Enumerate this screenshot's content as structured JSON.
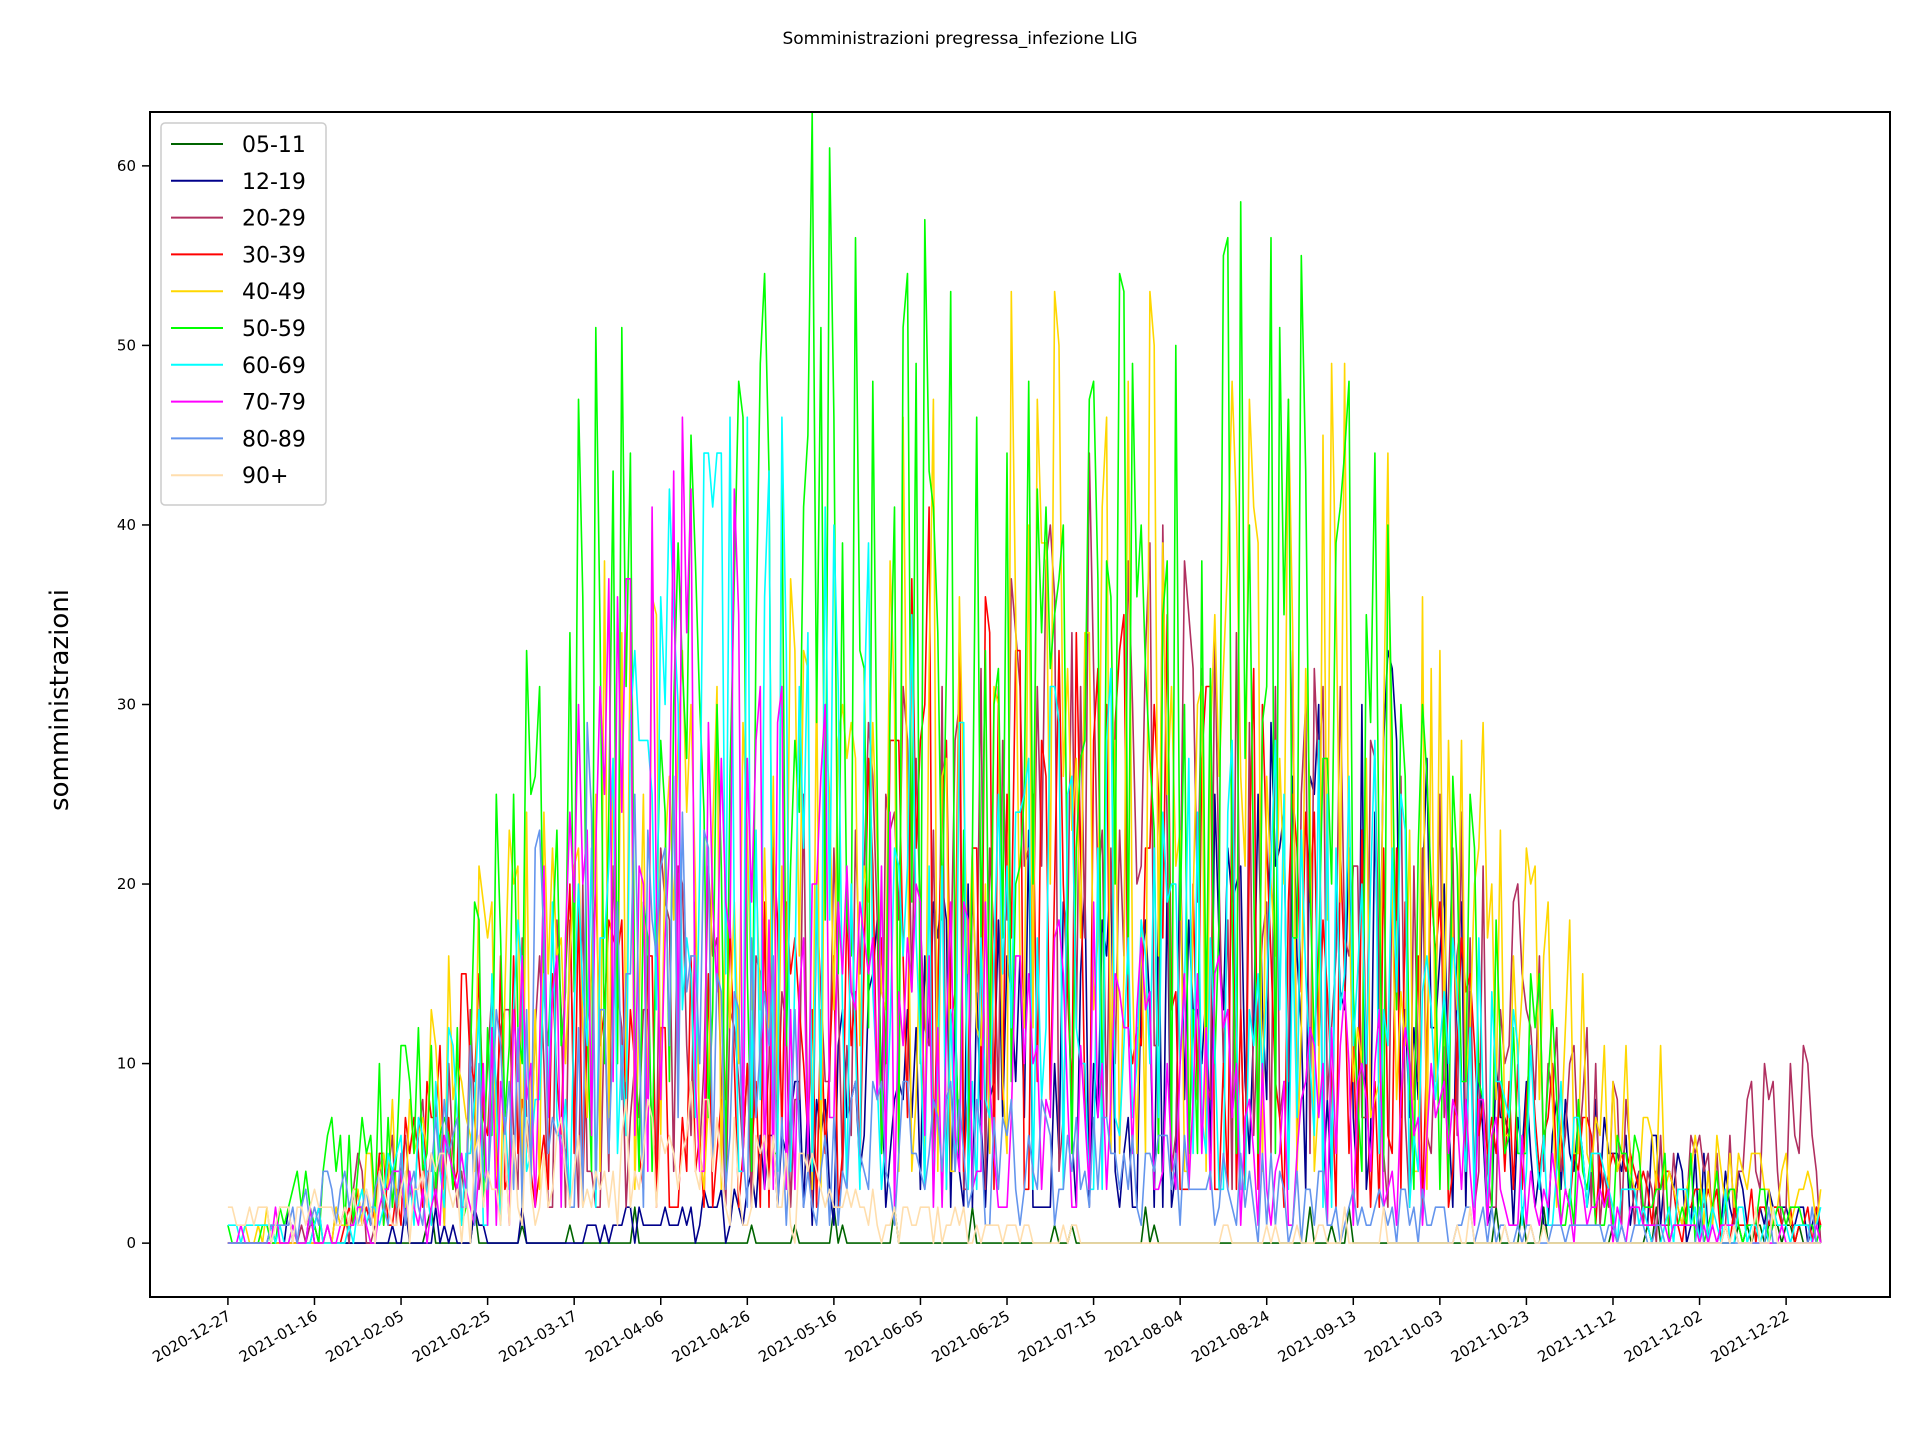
{
  "chart_data": {
    "type": "line",
    "title": "Somministrazioni pregressa_infezione LIG",
    "xlabel": "",
    "ylabel": "somministrazioni",
    "ylim": [
      -3,
      63
    ],
    "yticks": [
      0,
      10,
      20,
      30,
      40,
      50,
      60
    ],
    "x_start": "2020-12-27",
    "x_end": "2021-12-30",
    "x_range": [
      "2020-12-09",
      "2022-01-15"
    ],
    "x_ticks": [
      "2020-12-27",
      "2021-01-16",
      "2021-02-05",
      "2021-02-25",
      "2021-03-17",
      "2021-04-06",
      "2021-04-26",
      "2021-05-16",
      "2021-06-05",
      "2021-06-25",
      "2021-07-15",
      "2021-08-04",
      "2021-08-24",
      "2021-09-13",
      "2021-10-03",
      "2021-10-23",
      "2021-11-12",
      "2021-12-02",
      "2021-12-22"
    ],
    "legend_position": "upper-left",
    "grid": false,
    "series": [
      {
        "name": "05-11",
        "color": "#006400",
        "key": [
          [
            "2021-12-05",
            0
          ],
          [
            "2021-12-20",
            1
          ],
          [
            "2021-12-30",
            0
          ]
        ]
      },
      {
        "name": "12-19",
        "color": "#00008b",
        "key": [
          [
            "2021-01-01",
            0
          ],
          [
            "2021-03-05",
            0
          ],
          [
            "2021-04-25",
            2
          ],
          [
            "2021-05-20",
            10
          ],
          [
            "2021-06-20",
            14
          ],
          [
            "2021-07-25",
            13
          ],
          [
            "2021-08-20",
            17
          ],
          [
            "2021-09-25",
            20
          ],
          [
            "2021-10-15",
            6
          ],
          [
            "2021-11-20",
            4
          ],
          [
            "2021-12-30",
            1
          ]
        ]
      },
      {
        "name": "20-29",
        "color": "#b03060",
        "key": [
          [
            "2021-01-10",
            0
          ],
          [
            "2021-02-15",
            6
          ],
          [
            "2021-03-20",
            14
          ],
          [
            "2021-04-20",
            12
          ],
          [
            "2021-05-20",
            18
          ],
          [
            "2021-06-20",
            22
          ],
          [
            "2021-07-20",
            28
          ],
          [
            "2021-08-20",
            21
          ],
          [
            "2021-09-20",
            16
          ],
          [
            "2021-10-15",
            14
          ],
          [
            "2021-11-20",
            3
          ],
          [
            "2021-12-27",
            7
          ],
          [
            "2021-12-30",
            0
          ]
        ]
      },
      {
        "name": "30-39",
        "color": "#ff0000",
        "key": [
          [
            "2021-01-20",
            0
          ],
          [
            "2021-02-20",
            9
          ],
          [
            "2021-03-20",
            13
          ],
          [
            "2021-04-20",
            10
          ],
          [
            "2021-05-20",
            17
          ],
          [
            "2021-06-10",
            25
          ],
          [
            "2021-07-10",
            20
          ],
          [
            "2021-08-10",
            22
          ],
          [
            "2021-09-05",
            14
          ],
          [
            "2021-10-05",
            12
          ],
          [
            "2021-11-10",
            3
          ],
          [
            "2021-12-30",
            1
          ]
        ]
      },
      {
        "name": "40-49",
        "color": "#ffd700",
        "key": [
          [
            "2021-01-20",
            0
          ],
          [
            "2021-02-20",
            11
          ],
          [
            "2021-03-22",
            24
          ],
          [
            "2021-04-20",
            18
          ],
          [
            "2021-05-20",
            24
          ],
          [
            "2021-06-15",
            30
          ],
          [
            "2021-07-15",
            33
          ],
          [
            "2021-08-15",
            28
          ],
          [
            "2021-09-15",
            30
          ],
          [
            "2021-10-10",
            18
          ],
          [
            "2021-11-10",
            8
          ],
          [
            "2021-12-30",
            2
          ]
        ]
      },
      {
        "name": "50-59",
        "color": "#00ff00",
        "key": [
          [
            "2021-01-01",
            0
          ],
          [
            "2021-02-20",
            10
          ],
          [
            "2021-03-22",
            30
          ],
          [
            "2021-04-20",
            25
          ],
          [
            "2021-05-12",
            38
          ],
          [
            "2021-06-10",
            32
          ],
          [
            "2021-07-10",
            30
          ],
          [
            "2021-08-10",
            34
          ],
          [
            "2021-09-10",
            33
          ],
          [
            "2021-10-05",
            17
          ],
          [
            "2021-11-10",
            4
          ],
          [
            "2021-12-30",
            1
          ]
        ]
      },
      {
        "name": "60-69",
        "color": "#00ffff",
        "key": [
          [
            "2020-12-27",
            1
          ],
          [
            "2021-01-20",
            0
          ],
          [
            "2021-02-20",
            8
          ],
          [
            "2021-03-20",
            14
          ],
          [
            "2021-04-20",
            30
          ],
          [
            "2021-05-15",
            24
          ],
          [
            "2021-06-20",
            18
          ],
          [
            "2021-07-20",
            19
          ],
          [
            "2021-08-20",
            17
          ],
          [
            "2021-09-20",
            16
          ],
          [
            "2021-10-15",
            9
          ],
          [
            "2021-11-15",
            2
          ],
          [
            "2021-12-30",
            1
          ]
        ]
      },
      {
        "name": "70-79",
        "color": "#ff00ff",
        "key": [
          [
            "2021-01-10",
            0
          ],
          [
            "2021-02-20",
            4
          ],
          [
            "2021-03-25",
            22
          ],
          [
            "2021-04-15",
            28
          ],
          [
            "2021-05-10",
            18
          ],
          [
            "2021-06-10",
            12
          ],
          [
            "2021-07-10",
            11
          ],
          [
            "2021-08-10",
            10
          ],
          [
            "2021-09-10",
            9
          ],
          [
            "2021-10-10",
            5
          ],
          [
            "2021-11-20",
            1
          ],
          [
            "2021-12-30",
            0
          ]
        ]
      },
      {
        "name": "80-89",
        "color": "#6495ed",
        "key": [
          [
            "2021-01-01",
            0
          ],
          [
            "2021-02-20",
            7
          ],
          [
            "2021-03-20",
            17
          ],
          [
            "2021-04-15",
            14
          ],
          [
            "2021-05-15",
            6
          ],
          [
            "2021-06-20",
            5
          ],
          [
            "2021-07-20",
            4
          ],
          [
            "2021-08-20",
            3
          ],
          [
            "2021-09-20",
            2
          ],
          [
            "2021-10-20",
            1
          ],
          [
            "2021-12-30",
            0
          ]
        ]
      },
      {
        "name": "90+",
        "color": "#ffdead",
        "key": [
          [
            "2021-01-01",
            1
          ],
          [
            "2021-02-20",
            3
          ],
          [
            "2021-03-20",
            5
          ],
          [
            "2021-04-20",
            5
          ],
          [
            "2021-05-20",
            2
          ],
          [
            "2021-06-20",
            1
          ],
          [
            "2021-08-01",
            0
          ],
          [
            "2021-12-30",
            0
          ]
        ]
      }
    ]
  }
}
